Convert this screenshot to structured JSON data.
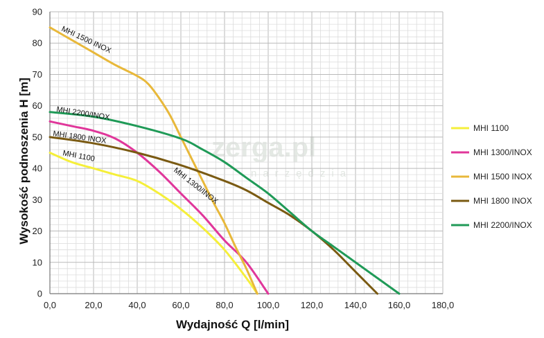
{
  "chart_data": {
    "type": "line",
    "xlabel": "Wydajność Q [l/min]",
    "ylabel": "Wysokość podnoszenia H [m]",
    "xlim": [
      0,
      180
    ],
    "ylim": [
      0,
      90
    ],
    "x_major_step": 20,
    "y_major_step": 10,
    "x_minor_step": 4,
    "y_minor_step": 2,
    "x_tick_labels": [
      "0,0",
      "20,0",
      "40,0",
      "60,0",
      "80,0",
      "100,0",
      "120,0",
      "140,0",
      "160,0",
      "180,0"
    ],
    "y_tick_labels": [
      "0",
      "10",
      "20",
      "30",
      "40",
      "50",
      "60",
      "70",
      "80",
      "90"
    ],
    "grid": true,
    "legend_position": "right",
    "watermark": {
      "main": "zerga.pl",
      "sub": "narzędzia"
    },
    "series": [
      {
        "name": "MHI 1100",
        "color": "#f5ef3a",
        "curve_label": "MHI 1100",
        "points": [
          [
            0,
            45
          ],
          [
            10,
            42
          ],
          [
            20,
            40
          ],
          [
            30,
            38
          ],
          [
            40,
            36
          ],
          [
            50,
            32
          ],
          [
            60,
            27
          ],
          [
            70,
            21
          ],
          [
            80,
            14
          ],
          [
            90,
            5
          ],
          [
            95,
            0
          ]
        ]
      },
      {
        "name": "MHI 1300/INOX",
        "color": "#e0369a",
        "curve_label": "MHI 1300/INOX",
        "points": [
          [
            0,
            55
          ],
          [
            10,
            53.5
          ],
          [
            20,
            52
          ],
          [
            30,
            49.5
          ],
          [
            40,
            45
          ],
          [
            50,
            39
          ],
          [
            60,
            32
          ],
          [
            70,
            25
          ],
          [
            80,
            17
          ],
          [
            90,
            10
          ],
          [
            100,
            0
          ]
        ]
      },
      {
        "name": "MHI 1500 INOX",
        "color": "#e8b83a",
        "curve_label": "MHI 1500 INOX",
        "points": [
          [
            0,
            85
          ],
          [
            10,
            81
          ],
          [
            20,
            77
          ],
          [
            30,
            73
          ],
          [
            40,
            69.5
          ],
          [
            45,
            67
          ],
          [
            50,
            62.5
          ],
          [
            55,
            57
          ],
          [
            60,
            50
          ],
          [
            65,
            43
          ],
          [
            70,
            36
          ],
          [
            75,
            29
          ],
          [
            80,
            22.5
          ],
          [
            85,
            15
          ],
          [
            90,
            8
          ],
          [
            95,
            0
          ]
        ]
      },
      {
        "name": "MHI 1800 INOX",
        "color": "#7a5a12",
        "curve_label": "MHI 1800 INOX",
        "points": [
          [
            0,
            50
          ],
          [
            20,
            48
          ],
          [
            40,
            45
          ],
          [
            60,
            41
          ],
          [
            80,
            36
          ],
          [
            90,
            33
          ],
          [
            100,
            29
          ],
          [
            110,
            25
          ],
          [
            120,
            20
          ],
          [
            130,
            14
          ],
          [
            140,
            7
          ],
          [
            150,
            0
          ]
        ]
      },
      {
        "name": "MHI 2200/INOX",
        "color": "#1f9a57",
        "curve_label": "MHI 2200/INOX",
        "points": [
          [
            0,
            58
          ],
          [
            20,
            56.5
          ],
          [
            40,
            53.5
          ],
          [
            60,
            49.5
          ],
          [
            70,
            46
          ],
          [
            80,
            42
          ],
          [
            90,
            37
          ],
          [
            100,
            32
          ],
          [
            110,
            26
          ],
          [
            120,
            20
          ],
          [
            130,
            15
          ],
          [
            140,
            10
          ],
          [
            150,
            5
          ],
          [
            160,
            0
          ]
        ]
      }
    ]
  }
}
